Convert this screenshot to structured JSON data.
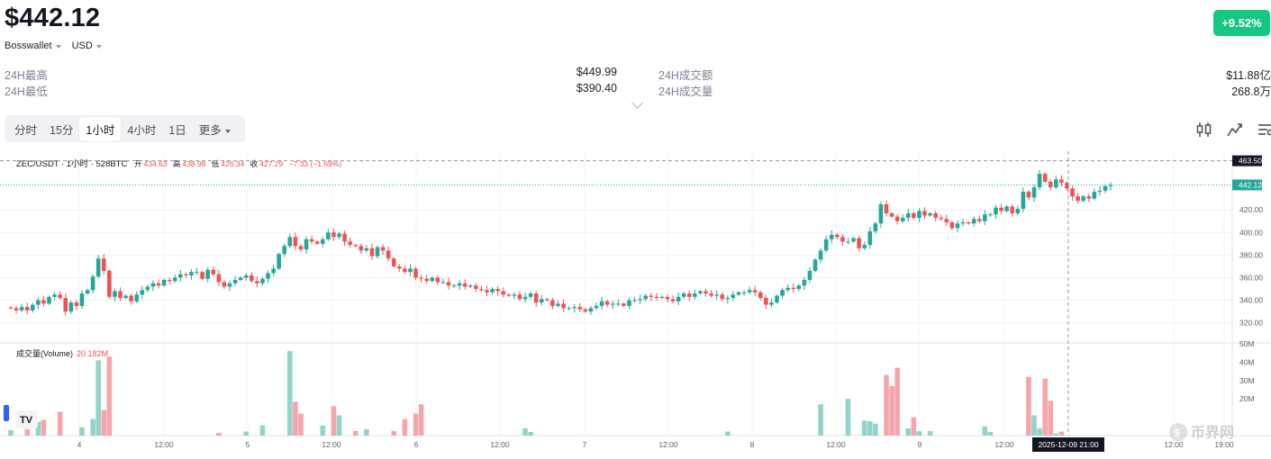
{
  "header": {
    "price": "$442.12",
    "exchange": "Bosswallet",
    "currency": "USD",
    "change": "+9.52%"
  },
  "stats": {
    "high_label": "24H最高",
    "high_value": "$449.99",
    "low_label": "24H最低",
    "low_value": "$390.40",
    "turnover_label": "24H成交额",
    "turnover_value": "$11.88亿",
    "volume_label": "24H成交量",
    "volume_value": "268.8万"
  },
  "tabs": [
    "分时",
    "15分",
    "1小时",
    "4小时",
    "1日",
    "更多"
  ],
  "active_tab": "1小时",
  "icons": [
    "candlestick-icon",
    "indicator-icon",
    "settings-icon",
    "expand-chevron-icon",
    "tradingview-logo-icon"
  ],
  "colors": {
    "up": "#26a69a",
    "down": "#ef5350",
    "up_vol": "#92d3ca",
    "down_vol": "#f5a6ab",
    "badge": "#16c784"
  },
  "chart_data": {
    "type": "candlestick",
    "legend": {
      "symbol": "ZEC/USDT · 1小时 · 528BTC",
      "open_label": "开",
      "open": "434.63",
      "high_label": "高",
      "high": "438.98",
      "low_label": "低",
      "low": "426.34",
      "close_label": "收",
      "close": "427.29",
      "change": "−7.33 (−1.69%)"
    },
    "price_axis": {
      "ylim": [
        303,
        472
      ],
      "ticks": [
        "320.00",
        "340.00",
        "360.00",
        "380.00",
        "400.00",
        "420.00"
      ],
      "last_price": "442.12",
      "crosshair_price": "463.50"
    },
    "volume_label": "成交量(Volume)",
    "volume_value": "20.182M",
    "volume_axis": {
      "ylim": [
        0,
        50
      ],
      "ticks": [
        "50M",
        "40M",
        "30M",
        "20M"
      ]
    },
    "x_ticks": [
      "4",
      "12:00",
      "5",
      "12:00",
      "6",
      "12:00",
      "7",
      "12:00",
      "8",
      "12:00",
      "9",
      "12:00",
      "12:00",
      "19:00"
    ],
    "crosshair_time": "2025-12-09   21:00",
    "closes": [
      333,
      331,
      334,
      331,
      336,
      340,
      337,
      343,
      345,
      342,
      330,
      338,
      335,
      346,
      349,
      361,
      377,
      366,
      343,
      348,
      342,
      344,
      339,
      345,
      349,
      352,
      355,
      353,
      358,
      357,
      360,
      363,
      362,
      365,
      365,
      359,
      367,
      363,
      356,
      352,
      355,
      358,
      360,
      362,
      357,
      355,
      359,
      364,
      368,
      381,
      388,
      396,
      388,
      385,
      394,
      392,
      390,
      394,
      400,
      396,
      399,
      392,
      389,
      388,
      384,
      386,
      379,
      387,
      384,
      377,
      370,
      368,
      365,
      368,
      360,
      359,
      357,
      360,
      356,
      356,
      353,
      353,
      355,
      352,
      353,
      350,
      349,
      347,
      350,
      348,
      345,
      344,
      345,
      341,
      343,
      346,
      338,
      341,
      340,
      335,
      337,
      333,
      333,
      334,
      332,
      330,
      333,
      335,
      339,
      336,
      337,
      337,
      335,
      340,
      340,
      341,
      344,
      343,
      342,
      343,
      341,
      339,
      343,
      346,
      343,
      346,
      348,
      346,
      344,
      345,
      341,
      342,
      345,
      347,
      347,
      349,
      347,
      342,
      336,
      338,
      344,
      349,
      351,
      350,
      353,
      358,
      366,
      376,
      384,
      394,
      398,
      396,
      392,
      392,
      395,
      386,
      389,
      401,
      408,
      425,
      417,
      414,
      410,
      413,
      417,
      413,
      419,
      415,
      417,
      413,
      412,
      409,
      404,
      408,
      409,
      408,
      412,
      410,
      416,
      416,
      422,
      419,
      423,
      417,
      421,
      436,
      431,
      440,
      452,
      445,
      440,
      447,
      444,
      439,
      432,
      428,
      432,
      430,
      436,
      437,
      441,
      442
    ],
    "volume": [
      {
        "i": 0,
        "v": 3
      },
      {
        "i": 3,
        "v": 3.5
      },
      {
        "i": 5,
        "v": 7.5
      },
      {
        "i": 6,
        "v": 8.5
      },
      {
        "i": 9,
        "v": 13
      },
      {
        "i": 13,
        "v": 4.5
      },
      {
        "i": 15,
        "v": 9
      },
      {
        "i": 16,
        "v": 41
      },
      {
        "i": 17,
        "v": 14
      },
      {
        "i": 18,
        "v": 43
      },
      {
        "i": 38,
        "v": 1.5
      },
      {
        "i": 43,
        "v": 2.2
      },
      {
        "i": 46,
        "v": 5.5
      },
      {
        "i": 51,
        "v": 46
      },
      {
        "i": 52,
        "v": 18.5
      },
      {
        "i": 53,
        "v": 12
      },
      {
        "i": 57,
        "v": 5.5
      },
      {
        "i": 59,
        "v": 16
      },
      {
        "i": 60,
        "v": 11
      },
      {
        "i": 63,
        "v": 2.5
      },
      {
        "i": 65,
        "v": 3.5
      },
      {
        "i": 70,
        "v": 2.5
      },
      {
        "i": 72,
        "v": 9
      },
      {
        "i": 74,
        "v": 12
      },
      {
        "i": 75,
        "v": 17
      },
      {
        "i": 94,
        "v": 4
      },
      {
        "i": 95,
        "v": 2
      },
      {
        "i": 131,
        "v": 2.2
      },
      {
        "i": 148,
        "v": 17
      },
      {
        "i": 153,
        "v": 20
      },
      {
        "i": 156,
        "v": 8.2
      },
      {
        "i": 157,
        "v": 7.8
      },
      {
        "i": 158,
        "v": 6.5
      },
      {
        "i": 160,
        "v": 33
      },
      {
        "i": 161,
        "v": 27
      },
      {
        "i": 162,
        "v": 37
      },
      {
        "i": 164,
        "v": 4
      },
      {
        "i": 165,
        "v": 10
      },
      {
        "i": 166,
        "v": 2.5
      },
      {
        "i": 168,
        "v": 2.5
      },
      {
        "i": 178,
        "v": 5
      },
      {
        "i": 179,
        "v": 2
      },
      {
        "i": 186,
        "v": 32
      },
      {
        "i": 187,
        "v": 11
      },
      {
        "i": 188,
        "v": 4
      },
      {
        "i": 189,
        "v": 31
      },
      {
        "i": 190,
        "v": 19
      },
      {
        "i": 191,
        "v": 1.2
      },
      {
        "i": 192,
        "v": 2.2
      }
    ]
  },
  "watermark": "币界网"
}
